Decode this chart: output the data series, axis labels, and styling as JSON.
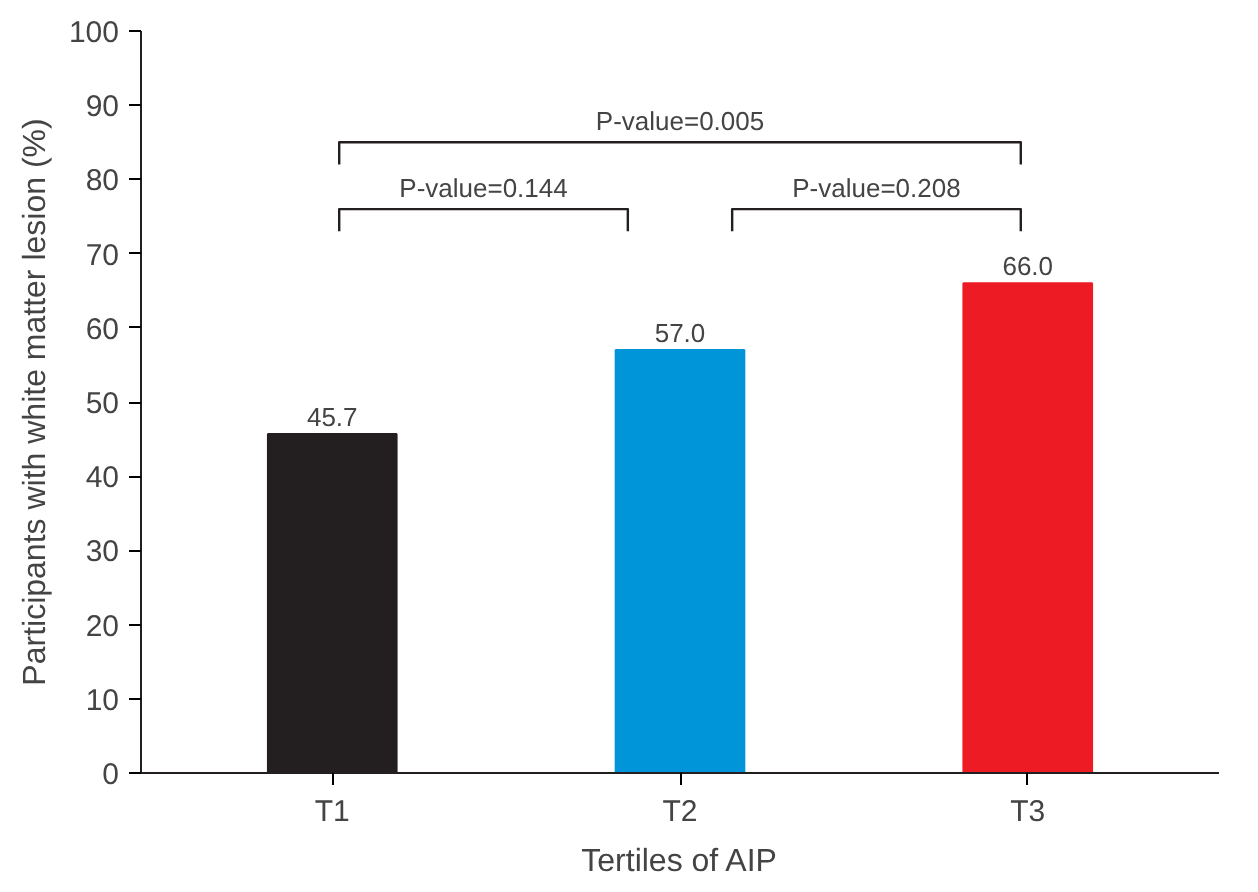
{
  "chart_data": {
    "type": "bar",
    "xlabel": "Tertiles of AIP",
    "ylabel": "Participants with white matter lesion (%)",
    "categories": [
      "T1",
      "T2",
      "T3"
    ],
    "values": [
      45.7,
      57.0,
      66.0
    ],
    "colors": [
      "#231f20",
      "#0095d9",
      "#ed1c24"
    ],
    "value_labels": [
      "45.7",
      "57.0",
      "66.0"
    ],
    "ylim": [
      0,
      100
    ],
    "yticks": [
      0,
      10,
      20,
      30,
      40,
      50,
      60,
      70,
      80,
      90,
      100
    ],
    "grid": false,
    "annotations": [
      "P-value=0.144",
      "P-value=0.208",
      "P-value=0.005"
    ]
  }
}
